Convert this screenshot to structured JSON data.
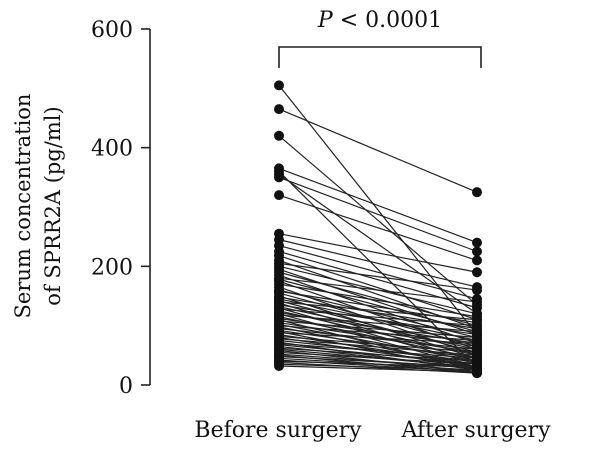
{
  "chart_data": {
    "type": "scatter",
    "subtype": "paired-points",
    "categories": [
      "Before surgery",
      "After surgery"
    ],
    "ylabel_lines": [
      "Serum concentration",
      "of SPRR2A (pg/ml)"
    ],
    "ylim": [
      0,
      600
    ],
    "yticks": [
      0,
      200,
      400,
      600
    ],
    "annotation": {
      "italic_part": "P",
      "rest": " < 0.0001"
    },
    "grid": false,
    "pairs": [
      [
        505,
        85
      ],
      [
        465,
        325
      ],
      [
        420,
        135
      ],
      [
        365,
        240
      ],
      [
        360,
        30
      ],
      [
        355,
        120
      ],
      [
        350,
        225
      ],
      [
        320,
        210
      ],
      [
        255,
        190
      ],
      [
        245,
        165
      ],
      [
        235,
        145
      ],
      [
        225,
        130
      ],
      [
        218,
        110
      ],
      [
        210,
        95
      ],
      [
        205,
        160
      ],
      [
        200,
        120
      ],
      [
        195,
        85
      ],
      [
        190,
        100
      ],
      [
        185,
        70
      ],
      [
        180,
        140
      ],
      [
        178,
        90
      ],
      [
        175,
        60
      ],
      [
        170,
        115
      ],
      [
        165,
        50
      ],
      [
        160,
        80
      ],
      [
        158,
        105
      ],
      [
        155,
        65
      ],
      [
        150,
        45
      ],
      [
        148,
        95
      ],
      [
        145,
        75
      ],
      [
        142,
        55
      ],
      [
        140,
        110
      ],
      [
        138,
        40
      ],
      [
        135,
        85
      ],
      [
        132,
        60
      ],
      [
        130,
        35
      ],
      [
        128,
        100
      ],
      [
        125,
        50
      ],
      [
        122,
        70
      ],
      [
        120,
        30
      ],
      [
        118,
        90
      ],
      [
        115,
        45
      ],
      [
        112,
        65
      ],
      [
        110,
        25
      ],
      [
        108,
        80
      ],
      [
        105,
        55
      ],
      [
        102,
        40
      ],
      [
        100,
        75
      ],
      [
        98,
        30
      ],
      [
        95,
        60
      ],
      [
        92,
        45
      ],
      [
        90,
        25
      ],
      [
        88,
        70
      ],
      [
        85,
        35
      ],
      [
        82,
        55
      ],
      [
        80,
        30
      ],
      [
        78,
        50
      ],
      [
        75,
        40
      ],
      [
        72,
        25
      ],
      [
        70,
        45
      ],
      [
        68,
        35
      ],
      [
        65,
        28
      ],
      [
        62,
        40
      ],
      [
        60,
        30
      ],
      [
        58,
        22
      ],
      [
        55,
        35
      ],
      [
        52,
        28
      ],
      [
        50,
        20
      ],
      [
        48,
        30
      ],
      [
        45,
        25
      ],
      [
        42,
        22
      ],
      [
        40,
        30
      ],
      [
        38,
        20
      ],
      [
        35,
        25
      ],
      [
        32,
        22
      ]
    ]
  }
}
